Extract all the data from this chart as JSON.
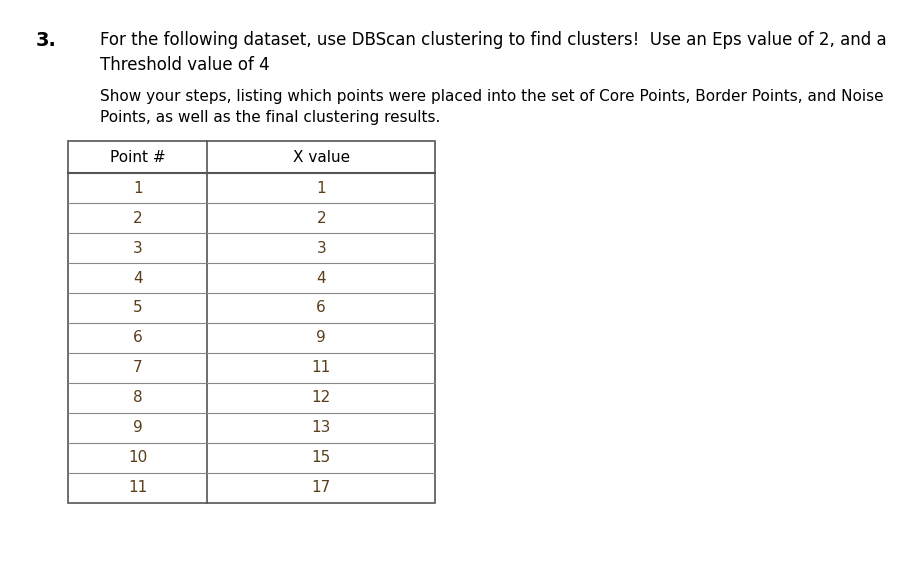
{
  "question_number": "3.",
  "title_line1": "For the following dataset, use DBScan clustering to find clusters!  Use an Eps value of 2, and a",
  "title_line2": "Threshold value of 4",
  "subtitle_line1": "Show your steps, listing which points were placed into the set of Core Points, Border Points, and Noise",
  "subtitle_line2": "Points, as well as the final clustering results.",
  "col_headers": [
    "Point #",
    "X value"
  ],
  "rows": [
    [
      1,
      1
    ],
    [
      2,
      2
    ],
    [
      3,
      3
    ],
    [
      4,
      4
    ],
    [
      5,
      6
    ],
    [
      6,
      9
    ],
    [
      7,
      11
    ],
    [
      8,
      12
    ],
    [
      9,
      13
    ],
    [
      10,
      15
    ],
    [
      11,
      17
    ]
  ],
  "background_color": "#ffffff",
  "text_color": "#000000",
  "table_text_color": "#5a3e1b",
  "header_text_color": "#000000",
  "subtitle_color": "#000000",
  "header_fontsize": 11,
  "body_fontsize": 11,
  "title_fontsize": 12,
  "subtitle_fontsize": 11,
  "question_fontsize": 14
}
